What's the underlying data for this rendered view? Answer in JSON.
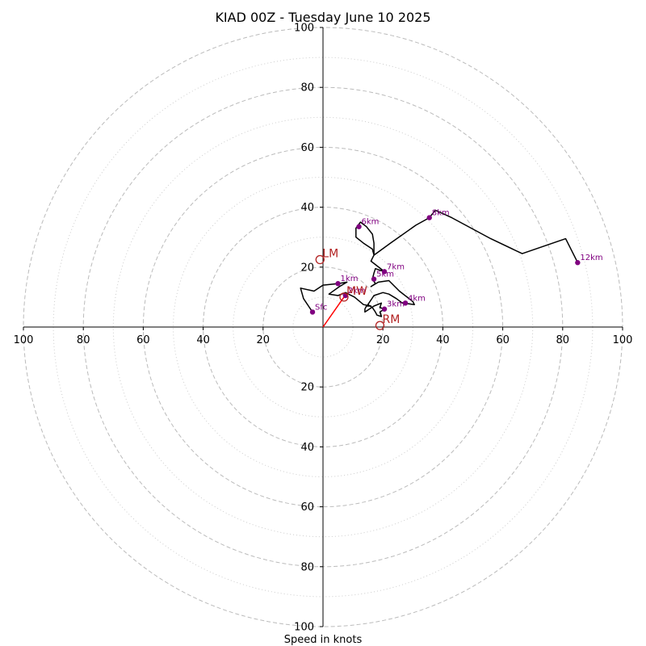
{
  "chart_data": {
    "type": "line",
    "title": "KIAD 00Z - Tuesday June 10 2025",
    "xlabel": "Speed in knots",
    "ylabel": "",
    "xlim": [
      -100,
      100
    ],
    "ylim": [
      -100,
      100
    ],
    "grid": true,
    "ring_major": [
      20,
      40,
      60,
      80,
      100
    ],
    "ring_minor": [
      10,
      30,
      50,
      70,
      90
    ],
    "x_tick_labels": [
      "100",
      "80",
      "60",
      "40",
      "20",
      "20",
      "40",
      "60",
      "80",
      "100"
    ],
    "x_tick_values": [
      -100,
      -80,
      -60,
      -40,
      -20,
      20,
      40,
      60,
      80,
      100
    ],
    "y_tick_labels": [
      "100",
      "80",
      "60",
      "40",
      "20",
      "20",
      "40",
      "60",
      "80",
      "100"
    ],
    "y_tick_values": [
      100,
      80,
      60,
      40,
      20,
      -20,
      -40,
      -60,
      -80,
      -100
    ],
    "hodograph": {
      "color": "#000000",
      "points": [
        [
          -3.5,
          5
        ],
        [
          -6.5,
          9.5
        ],
        [
          -7.5,
          13
        ],
        [
          -3,
          12
        ],
        [
          0,
          14
        ],
        [
          5,
          14.5
        ],
        [
          8,
          15
        ],
        [
          5.5,
          13.5
        ],
        [
          2,
          11
        ],
        [
          5,
          10.5
        ],
        [
          7.5,
          11.5
        ],
        [
          10.5,
          10
        ],
        [
          13.5,
          7.5
        ],
        [
          16,
          7
        ],
        [
          14.5,
          7
        ],
        [
          14,
          6
        ],
        [
          14,
          5
        ],
        [
          17,
          7
        ],
        [
          19.5,
          8
        ],
        [
          19,
          6.5
        ],
        [
          20.5,
          6
        ],
        [
          19,
          5
        ],
        [
          19.5,
          3.5
        ],
        [
          18,
          4
        ],
        [
          17.5,
          5
        ],
        [
          16.5,
          6.5
        ],
        [
          15,
          7.5
        ],
        [
          17,
          10.5
        ],
        [
          20,
          11.5
        ],
        [
          22,
          11
        ],
        [
          24.5,
          9.5
        ],
        [
          26.5,
          8
        ],
        [
          30.5,
          7.5
        ],
        [
          30,
          8.5
        ],
        [
          25.5,
          12
        ],
        [
          22,
          15.5
        ],
        [
          18.5,
          15
        ],
        [
          16,
          13.5
        ],
        [
          17.5,
          14.5
        ],
        [
          16.5,
          16
        ],
        [
          17,
          18
        ],
        [
          17.5,
          19.5
        ],
        [
          20.5,
          18.5
        ],
        [
          16,
          22
        ],
        [
          16.5,
          23
        ],
        [
          17,
          24
        ],
        [
          17,
          28
        ],
        [
          16.5,
          31
        ],
        [
          14.5,
          33.5
        ],
        [
          12.5,
          35
        ],
        [
          11,
          33
        ],
        [
          11,
          30
        ],
        [
          13.5,
          28
        ],
        [
          16.5,
          26
        ],
        [
          17,
          24
        ],
        [
          22.5,
          28
        ],
        [
          31,
          34
        ],
        [
          35.5,
          36.5
        ],
        [
          37.5,
          39
        ],
        [
          43,
          36.5
        ],
        [
          56,
          29.5
        ],
        [
          66.5,
          24.5
        ],
        [
          81,
          29.5
        ],
        [
          85,
          21.5
        ]
      ]
    },
    "height_markers": [
      {
        "label": "Sfc",
        "x": -3.5,
        "y": 5
      },
      {
        "label": "1km",
        "x": 5,
        "y": 14.5
      },
      {
        "label": "2km",
        "x": 7.5,
        "y": 10.5
      },
      {
        "label": "3km",
        "x": 20.5,
        "y": 6
      },
      {
        "label": "4km",
        "x": 27.5,
        "y": 8
      },
      {
        "label": "5km",
        "x": 17,
        "y": 16
      },
      {
        "label": "6km",
        "x": 12,
        "y": 33.5
      },
      {
        "label": "7km",
        "x": 20.5,
        "y": 18.5
      },
      {
        "label": "8km",
        "x": 35.5,
        "y": 36.5
      },
      {
        "label": "12km",
        "x": 85,
        "y": 21.5
      }
    ],
    "storm_motions": [
      {
        "label": "LM",
        "x": -1,
        "y": 22.5
      },
      {
        "label": "MW",
        "x": 7,
        "y": 10
      },
      {
        "label": "RM",
        "x": 19,
        "y": 0.5
      }
    ],
    "mean_wind_vector": {
      "from": [
        0,
        0
      ],
      "to": [
        7,
        10
      ]
    },
    "colors": {
      "hodograph": "#000000",
      "markers": "#800080",
      "storm": "#b22222",
      "vector": "#ff0000",
      "grid": "#bbbbbb"
    }
  }
}
